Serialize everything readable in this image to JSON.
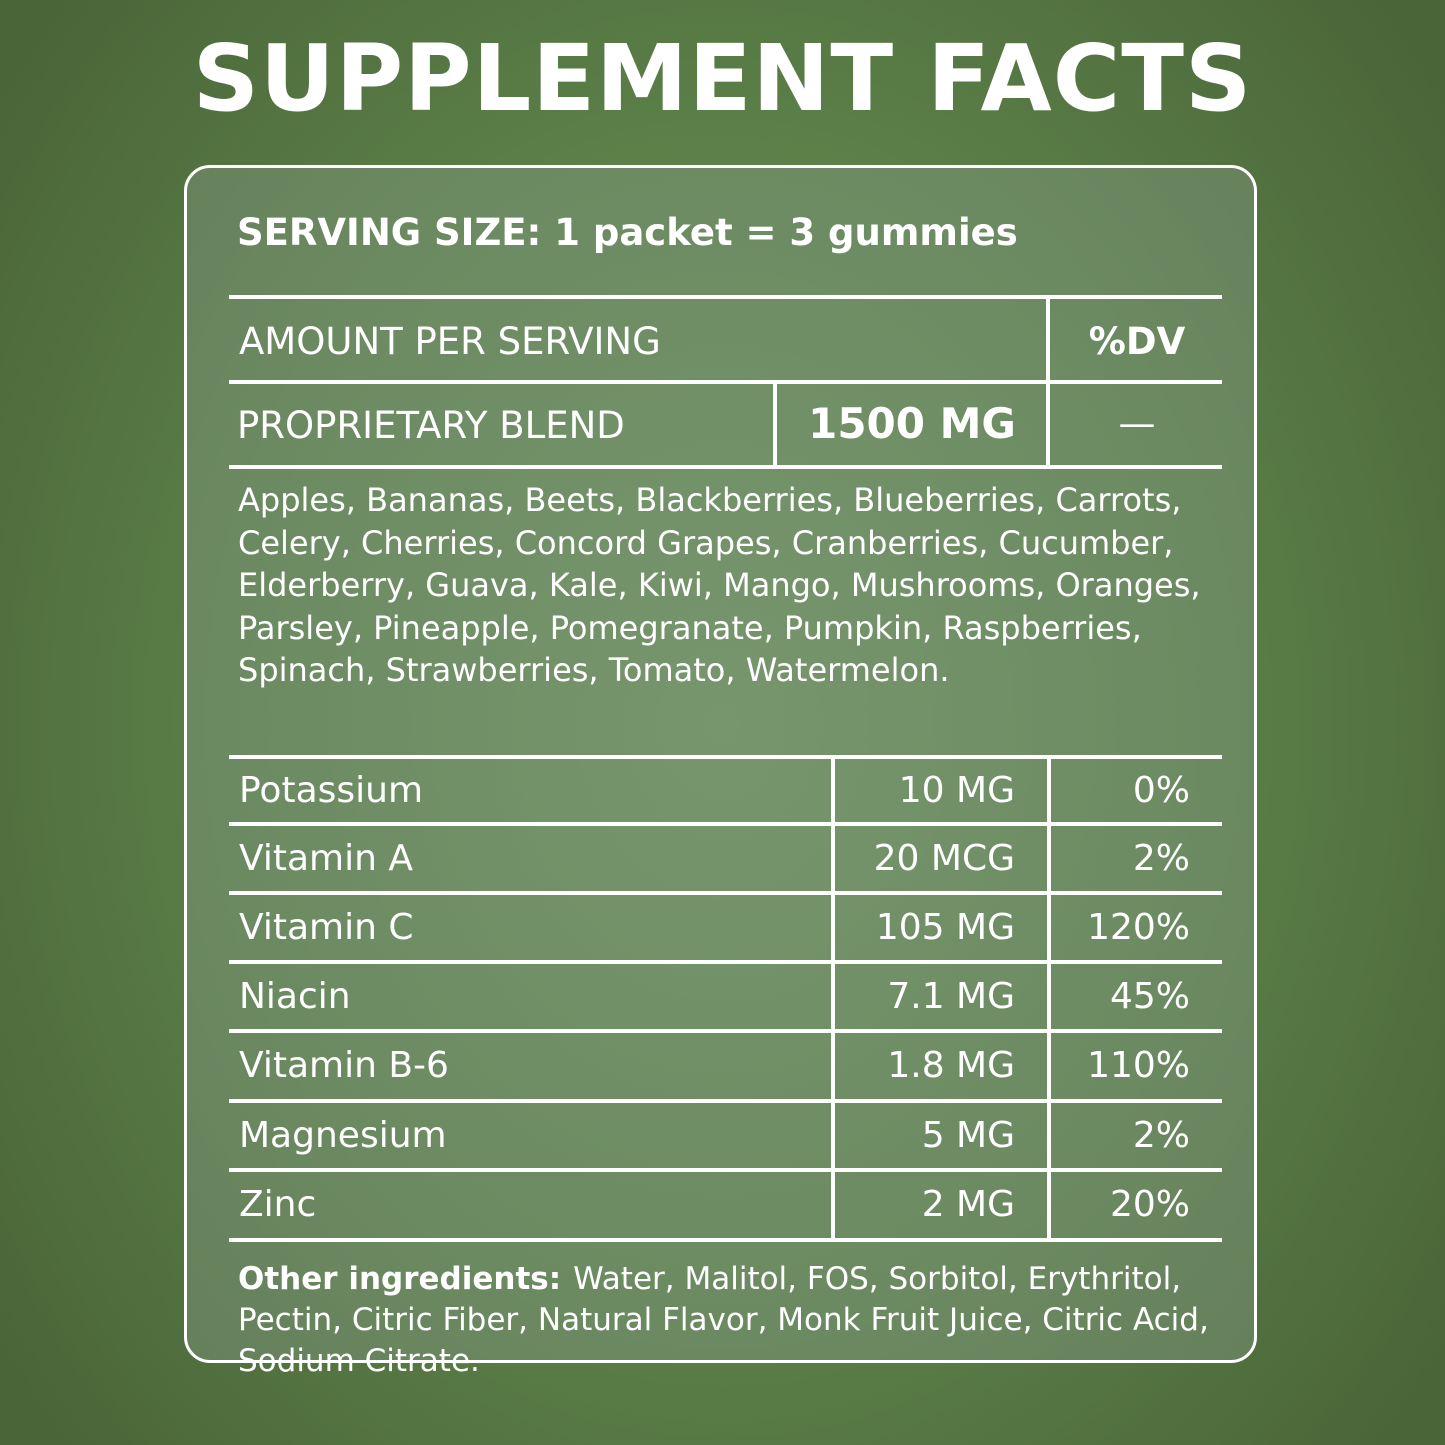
{
  "title": "SUPPLEMENT FACTS",
  "serving_size": "SERVING SIZE: 1 packet = 3 gummies",
  "header": {
    "amount_per_serving": "AMOUNT PER SERVING",
    "dv": "%DV"
  },
  "blend": {
    "name": "PROPRIETARY BLEND",
    "amount": "1500 MG",
    "dv": "—",
    "ingredients": "Apples, Bananas, Beets, Blackberries, Blueberries, Carrots, Celery, Cherries, Concord Grapes, Cranberries, Cucumber, Elderberry, Guava, Kale, Kiwi, Mango, Mushrooms, Oranges, Parsley, Pineapple, Pomegranate, Pumpkin, Raspberries, Spinach, Strawberries, Tomato, Watermelon."
  },
  "nutrients": [
    {
      "name": "Potassium",
      "amount": "10 MG",
      "dv": "0%"
    },
    {
      "name": "Vitamin A",
      "amount": "20 MCG",
      "dv": "2%"
    },
    {
      "name": "Vitamin C",
      "amount": "105 MG",
      "dv": "120%"
    },
    {
      "name": "Niacin",
      "amount": "7.1 MG",
      "dv": "45%"
    },
    {
      "name": "Vitamin B-6",
      "amount": "1.8 MG",
      "dv": "110%"
    },
    {
      "name": "Magnesium",
      "amount": "5 MG",
      "dv": "2%"
    },
    {
      "name": "Zinc",
      "amount": "2 MG",
      "dv": "20%"
    }
  ],
  "other_ingredients": {
    "label": "Other ingredients:",
    "text": "Water, Malitol, FOS, Sorbitol, Erythritol, Pectin, Citric Fiber, Natural Flavor, Monk Fruit Juice, Citric Acid, Sodium Citrate."
  },
  "colors": {
    "background": "#5b7f48",
    "text": "#ffffff"
  }
}
